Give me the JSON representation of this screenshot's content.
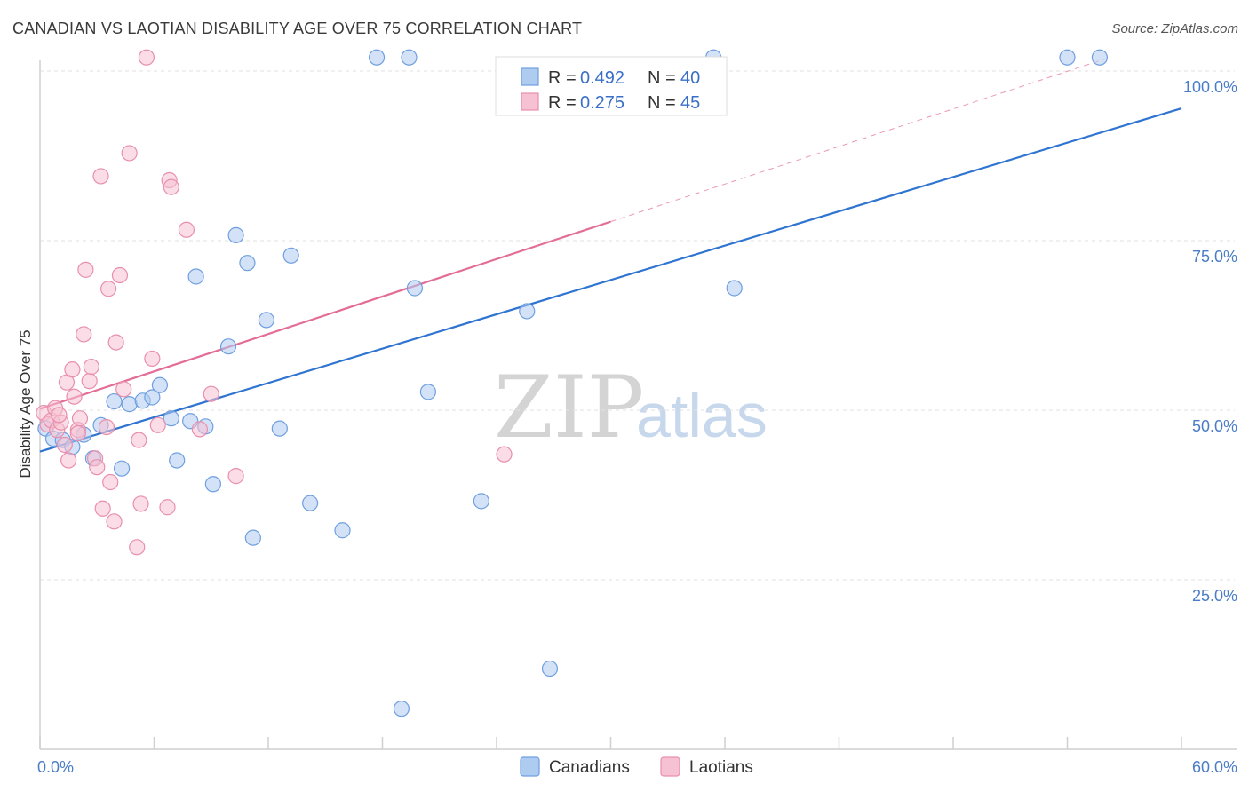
{
  "header": {
    "title": "CANADIAN VS LAOTIAN DISABILITY AGE OVER 75 CORRELATION CHART",
    "source": "Source: ZipAtlas.com"
  },
  "watermark": {
    "zip": "ZIP",
    "atlas": "atlas"
  },
  "chart_data": {
    "type": "scatter",
    "title": "CANADIAN VS LAOTIAN DISABILITY AGE OVER 75 CORRELATION CHART",
    "ylabel": "Disability Age Over 75",
    "xlabel": "",
    "xlim": [
      0,
      60
    ],
    "ylim": [
      0,
      100
    ],
    "x_tick_labels": [
      "0.0%",
      "60.0%"
    ],
    "y_ticks": [
      25,
      50,
      75,
      100
    ],
    "y_tick_labels": [
      "25.0%",
      "50.0%",
      "75.0%",
      "100.0%"
    ],
    "grid": "horizontal dashed",
    "legend_position": "top-center",
    "colors": {
      "Canadians": {
        "fill": "#aecbf0",
        "stroke": "#6f9fe0",
        "line": "#2f74d0"
      },
      "Laotians": {
        "fill": "#f6c1d2",
        "stroke": "#e98fae",
        "line": "#e36d97"
      }
    },
    "stats": [
      {
        "series": "Canadians",
        "r_label": "R =",
        "r": "0.492",
        "n_label": "N =",
        "n": "40"
      },
      {
        "series": "Laotians",
        "r_label": "R =",
        "r": "0.275",
        "n_label": "N =",
        "n": "45"
      }
    ],
    "series": [
      {
        "name": "Canadians",
        "points": [
          [
            0.3,
            47.3
          ],
          [
            0.7,
            45.8
          ],
          [
            1.2,
            45.6
          ],
          [
            1.7,
            44.6
          ],
          [
            2.3,
            46.4
          ],
          [
            2.8,
            42.9
          ],
          [
            3.2,
            47.8
          ],
          [
            3.9,
            51.3
          ],
          [
            4.3,
            41.4
          ],
          [
            4.7,
            50.9
          ],
          [
            5.4,
            51.4
          ],
          [
            5.9,
            51.9
          ],
          [
            6.3,
            53.7
          ],
          [
            6.9,
            48.8
          ],
          [
            7.2,
            42.6
          ],
          [
            7.9,
            48.4
          ],
          [
            8.2,
            69.7
          ],
          [
            8.7,
            47.6
          ],
          [
            9.1,
            39.1
          ],
          [
            9.9,
            59.4
          ],
          [
            10.3,
            75.8
          ],
          [
            10.9,
            71.7
          ],
          [
            11.2,
            31.2
          ],
          [
            11.9,
            63.3
          ],
          [
            12.6,
            47.3
          ],
          [
            13.2,
            72.8
          ],
          [
            14.2,
            36.3
          ],
          [
            15.9,
            32.3
          ],
          [
            17.7,
            102.0
          ],
          [
            19.4,
            102.0
          ],
          [
            19.0,
            6.0
          ],
          [
            19.7,
            68.0
          ],
          [
            20.4,
            52.7
          ],
          [
            23.2,
            36.6
          ],
          [
            25.6,
            64.6
          ],
          [
            26.8,
            11.9
          ],
          [
            35.4,
            102.0
          ],
          [
            36.5,
            68.0
          ],
          [
            54.0,
            102.0
          ],
          [
            55.7,
            102.0
          ]
        ],
        "trend": {
          "x": [
            0,
            60
          ],
          "y": [
            43.9,
            94.5
          ]
        }
      },
      {
        "name": "Laotians",
        "points": [
          [
            0.2,
            49.6
          ],
          [
            0.4,
            47.9
          ],
          [
            0.6,
            48.5
          ],
          [
            0.8,
            50.3
          ],
          [
            0.9,
            47.1
          ],
          [
            1.1,
            48.2
          ],
          [
            1.3,
            44.9
          ],
          [
            1.4,
            54.1
          ],
          [
            1.5,
            42.6
          ],
          [
            1.7,
            56.0
          ],
          [
            1.8,
            52.0
          ],
          [
            2.0,
            47.1
          ],
          [
            2.1,
            48.8
          ],
          [
            2.3,
            61.2
          ],
          [
            2.4,
            70.7
          ],
          [
            2.6,
            54.3
          ],
          [
            2.7,
            56.4
          ],
          [
            2.9,
            42.9
          ],
          [
            3.0,
            41.6
          ],
          [
            3.2,
            84.5
          ],
          [
            3.3,
            35.5
          ],
          [
            3.6,
            67.9
          ],
          [
            3.7,
            39.4
          ],
          [
            3.9,
            33.6
          ],
          [
            4.2,
            69.9
          ],
          [
            4.4,
            53.1
          ],
          [
            4.7,
            87.9
          ],
          [
            5.1,
            29.8
          ],
          [
            5.2,
            45.6
          ],
          [
            5.3,
            36.2
          ],
          [
            5.9,
            57.6
          ],
          [
            6.7,
            35.7
          ],
          [
            6.8,
            83.9
          ],
          [
            6.9,
            82.9
          ],
          [
            7.7,
            76.6
          ],
          [
            8.4,
            47.2
          ],
          [
            9.0,
            52.4
          ],
          [
            10.3,
            40.3
          ],
          [
            5.6,
            102.0
          ],
          [
            2.0,
            46.6
          ],
          [
            1.0,
            49.3
          ],
          [
            4.0,
            60.0
          ],
          [
            6.2,
            47.8
          ],
          [
            3.5,
            47.5
          ],
          [
            24.4,
            43.5
          ]
        ],
        "trend": {
          "x": [
            0,
            30
          ],
          "y": [
            50.2,
            77.8
          ]
        },
        "trend_extension": {
          "x": [
            30,
            56
          ],
          "y": [
            77.8,
            101.8
          ]
        }
      }
    ]
  }
}
